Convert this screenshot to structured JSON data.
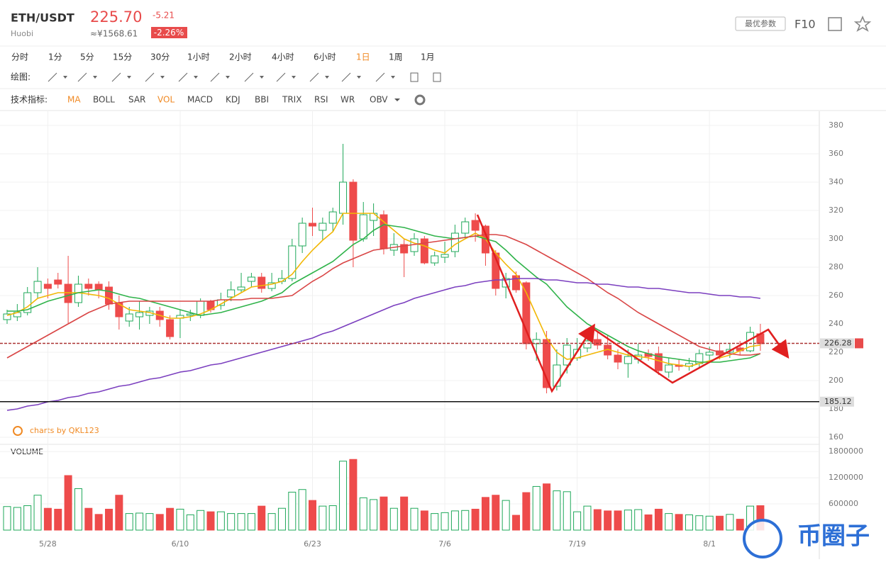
{
  "header": {
    "pair": "ETH/USDT",
    "exchange": "Huobi",
    "price": "225.70",
    "change": "-5.21",
    "cny": "≈¥1568.61",
    "change_pct": "-2.26%",
    "button": "最优参数",
    "f10": "F10"
  },
  "periods": [
    "分时",
    "1分",
    "5分",
    "15分",
    "30分",
    "1小时",
    "2小时",
    "4小时",
    "6小时",
    "1日",
    "1周",
    "1月"
  ],
  "active_period": 9,
  "draw_label": "绘图:",
  "indicator_label": "技术指标:",
  "indicators": [
    "MA",
    "BOLL",
    "SAR",
    "VOL",
    "MACD",
    "KDJ",
    "BBI",
    "TRIX",
    "RSI",
    "WR",
    "OBV"
  ],
  "active_indicators": [
    0,
    3
  ],
  "chart_data": {
    "type": "candlestick",
    "credit": "charts by QKL123",
    "volume_label": "VOLUME",
    "watermark": "币圈子",
    "categories": [
      null,
      null,
      null,
      null,
      "5/28",
      null,
      null,
      null,
      null,
      null,
      null,
      null,
      null,
      null,
      null,
      null,
      null,
      "6/10",
      null,
      null,
      null,
      null,
      null,
      null,
      null,
      null,
      null,
      null,
      null,
      null,
      "6/23",
      null,
      null,
      null,
      null,
      null,
      null,
      null,
      null,
      null,
      null,
      null,
      null,
      "7/6",
      null,
      null,
      null,
      null,
      null,
      null,
      null,
      null,
      null,
      null,
      null,
      null,
      "7/19",
      null,
      null,
      null,
      null,
      null,
      null,
      null,
      null,
      null,
      null,
      null,
      null,
      "8/1",
      null,
      null,
      null,
      null,
      null
    ],
    "open": [
      243,
      245,
      248,
      262,
      268,
      271,
      268,
      255,
      268,
      268,
      266,
      255,
      242,
      245,
      246,
      249,
      243,
      244,
      246,
      246,
      256,
      253,
      259,
      264,
      270,
      273,
      265,
      270,
      272,
      295,
      311,
      306,
      311,
      318,
      340,
      300,
      313,
      317,
      292,
      296,
      291,
      300,
      283,
      287,
      291,
      304,
      313,
      309,
      290,
      266,
      274,
      269,
      226,
      229,
      196,
      211,
      216,
      223,
      229,
      225,
      218,
      212,
      215,
      219,
      219,
      206,
      211,
      210,
      212,
      218,
      221,
      220,
      223,
      221,
      233
    ],
    "high": [
      250,
      254,
      266,
      280,
      272,
      276,
      288,
      274,
      272,
      270,
      270,
      260,
      252,
      256,
      252,
      252,
      246,
      250,
      250,
      258,
      257,
      262,
      270,
      276,
      276,
      276,
      276,
      278,
      300,
      315,
      322,
      315,
      322,
      367,
      342,
      326,
      325,
      320,
      304,
      300,
      304,
      302,
      291,
      298,
      310,
      315,
      318,
      310,
      292,
      276,
      277,
      270,
      234,
      235,
      222,
      230,
      230,
      236,
      234,
      232,
      222,
      222,
      226,
      222,
      224,
      216,
      215,
      216,
      222,
      224,
      226,
      226,
      228,
      238,
      240
    ],
    "low": [
      240,
      242,
      246,
      258,
      258,
      265,
      240,
      252,
      260,
      258,
      250,
      236,
      238,
      236,
      240,
      238,
      229,
      230,
      242,
      244,
      248,
      250,
      256,
      262,
      266,
      262,
      263,
      268,
      270,
      290,
      302,
      299,
      305,
      310,
      280,
      298,
      302,
      289,
      288,
      273,
      288,
      282,
      281,
      283,
      287,
      300,
      298,
      281,
      260,
      258,
      262,
      222,
      214,
      191,
      193,
      205,
      214,
      220,
      222,
      215,
      208,
      202,
      212,
      214,
      204,
      202,
      207,
      207,
      209,
      214,
      215,
      216,
      218,
      220,
      221
    ],
    "close": [
      247,
      248,
      262,
      270,
      265,
      268,
      255,
      268,
      265,
      264,
      254,
      245,
      247,
      248,
      249,
      243,
      231,
      246,
      247,
      256,
      250,
      257,
      264,
      266,
      273,
      265,
      269,
      272,
      295,
      311,
      309,
      311,
      319,
      340,
      299,
      317,
      318,
      293,
      296,
      290,
      300,
      283,
      288,
      289,
      304,
      312,
      306,
      290,
      265,
      272,
      264,
      226,
      229,
      195,
      211,
      225,
      222,
      228,
      225,
      218,
      213,
      217,
      218,
      217,
      207,
      211,
      210,
      212,
      219,
      220,
      218,
      222,
      221,
      234,
      226
    ],
    "volume": [
      540000,
      520000,
      560000,
      800000,
      500000,
      480000,
      1250000,
      950000,
      500000,
      360000,
      480000,
      800000,
      380000,
      390000,
      380000,
      360000,
      500000,
      480000,
      350000,
      450000,
      420000,
      420000,
      380000,
      380000,
      380000,
      550000,
      380000,
      500000,
      870000,
      930000,
      680000,
      550000,
      560000,
      1580000,
      1620000,
      740000,
      700000,
      760000,
      500000,
      760000,
      500000,
      440000,
      380000,
      400000,
      440000,
      450000,
      480000,
      750000,
      800000,
      680000,
      340000,
      860000,
      1000000,
      1060000,
      900000,
      880000,
      420000,
      550000,
      470000,
      440000,
      440000,
      460000,
      470000,
      350000,
      480000,
      380000,
      360000,
      350000,
      330000,
      320000,
      320000,
      360000,
      250000,
      550000,
      560000
    ],
    "up_color": "#1fa85a",
    "down_color": "#ee4b4b",
    "ma": [
      {
        "color": "#f2b705",
        "values": [
          246,
          248,
          252,
          258,
          260,
          262,
          262,
          262,
          261,
          260,
          258,
          254,
          250,
          249,
          248,
          246,
          244,
          244,
          245,
          247,
          250,
          254,
          258,
          262,
          266,
          267,
          268,
          270,
          275,
          284,
          292,
          299,
          305,
          318,
          318,
          318,
          318,
          312,
          306,
          300,
          297,
          295,
          292,
          290,
          296,
          300,
          304,
          300,
          290,
          282,
          275,
          262,
          246,
          230,
          220,
          215,
          216,
          218,
          220,
          222,
          220,
          218,
          217,
          216,
          214,
          212,
          211,
          210,
          212,
          214,
          216,
          218,
          221,
          224,
          225
        ]
      },
      {
        "color": "#2fb34a",
        "values": [
          249,
          249,
          250,
          253,
          256,
          258,
          260,
          262,
          263,
          264,
          263,
          261,
          259,
          258,
          256,
          254,
          252,
          250,
          248,
          246,
          247,
          248,
          250,
          252,
          254,
          256,
          259,
          262,
          268,
          272,
          276,
          280,
          284,
          290,
          296,
          300,
          306,
          310,
          309,
          308,
          306,
          304,
          302,
          301,
          300,
          301,
          302,
          300,
          298,
          292,
          285,
          279,
          273,
          268,
          260,
          252,
          246,
          240,
          236,
          232,
          228,
          224,
          221,
          219,
          217,
          216,
          215,
          214,
          213,
          213,
          213,
          214,
          215,
          216,
          219
        ]
      },
      {
        "color": "#d94545",
        "values": [
          216,
          220,
          224,
          228,
          232,
          236,
          240,
          244,
          248,
          251,
          254,
          255,
          256,
          256,
          256,
          256,
          256,
          256,
          256,
          256,
          256,
          257,
          257,
          257,
          258,
          258,
          258,
          259,
          260,
          265,
          270,
          274,
          279,
          283,
          286,
          289,
          292,
          293,
          294,
          295,
          296,
          297,
          298,
          299,
          300,
          301,
          302,
          303,
          303,
          302,
          299,
          296,
          292,
          288,
          284,
          280,
          276,
          272,
          267,
          262,
          258,
          253,
          248,
          244,
          240,
          236,
          232,
          228,
          224,
          222,
          220,
          219,
          218,
          218,
          219
        ]
      },
      {
        "color": "#7b3fbf",
        "values": [
          179,
          180,
          182,
          183,
          185,
          186,
          188,
          189,
          191,
          192,
          194,
          196,
          197,
          199,
          201,
          202,
          204,
          206,
          207,
          209,
          211,
          212,
          214,
          216,
          218,
          220,
          222,
          224,
          226,
          228,
          230,
          233,
          235,
          238,
          241,
          244,
          247,
          250,
          253,
          255,
          258,
          260,
          262,
          264,
          266,
          267,
          269,
          270,
          271,
          271,
          272,
          272,
          272,
          271,
          271,
          270,
          269,
          269,
          268,
          268,
          267,
          266,
          266,
          265,
          265,
          264,
          263,
          262,
          262,
          261,
          260,
          260,
          259,
          259,
          258
        ]
      }
    ],
    "hlines": [
      {
        "value": 226.28,
        "dashed": true
      },
      {
        "value": 185.12,
        "dashed": false
      }
    ],
    "ylim": [
      155,
      390
    ],
    "yticks": [
      160,
      180,
      200,
      220,
      240,
      260,
      280,
      300,
      320,
      340,
      360,
      380
    ],
    "volume_ylim": [
      0,
      1900000
    ],
    "volume_yticks": [
      600000,
      1200000,
      1800000
    ],
    "grid": true
  }
}
